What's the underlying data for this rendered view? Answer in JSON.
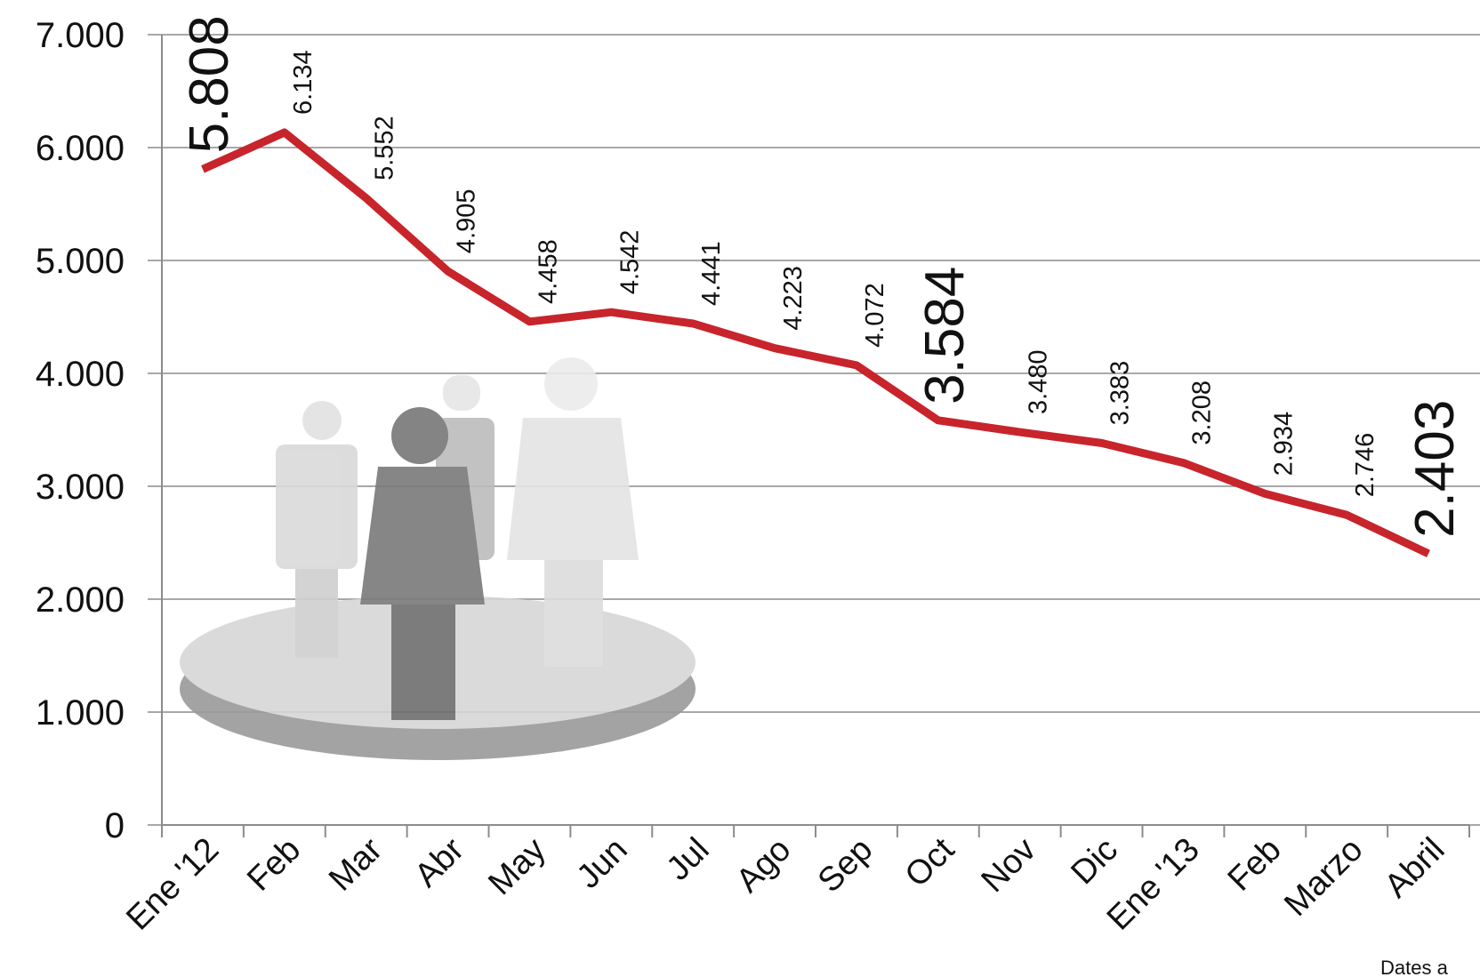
{
  "chart_data": {
    "type": "line",
    "categories": [
      "Ene '12",
      "Feb",
      "Mar",
      "Abr",
      "May",
      "Jun",
      "Jul",
      "Ago",
      "Sep",
      "Oct",
      "Nov",
      "Dic",
      "Ene '13",
      "Feb",
      "Marzo",
      "Abril"
    ],
    "series": [
      {
        "color": "#c8242b",
        "values": [
          5808,
          6134,
          5552,
          4905,
          4458,
          4542,
          4441,
          4223,
          4072,
          3584,
          3480,
          3383,
          3208,
          2934,
          2746,
          2403
        ],
        "value_labels": [
          "5.808",
          "6.134",
          "5.552",
          "4.905",
          "4.458",
          "4.542",
          "4.441",
          "4.223",
          "4.072",
          "3.584",
          "3.480",
          "3.383",
          "3.208",
          "2.934",
          "2.746",
          "2.403"
        ]
      }
    ],
    "ylim": [
      0,
      7000
    ],
    "yticks": [
      0,
      {
        "value": 1000,
        "label": "1.000"
      },
      {
        "value": 2000,
        "label": "2.000"
      },
      {
        "value": 3000,
        "label": "3.000"
      },
      {
        "value": 4000,
        "label": "4.000"
      },
      {
        "value": 5000,
        "label": "5.000"
      },
      {
        "value": 6000,
        "label": "6.000"
      },
      {
        "value": 7000,
        "label": "7.000"
      }
    ],
    "grid": true,
    "annotation": "Dates a"
  }
}
